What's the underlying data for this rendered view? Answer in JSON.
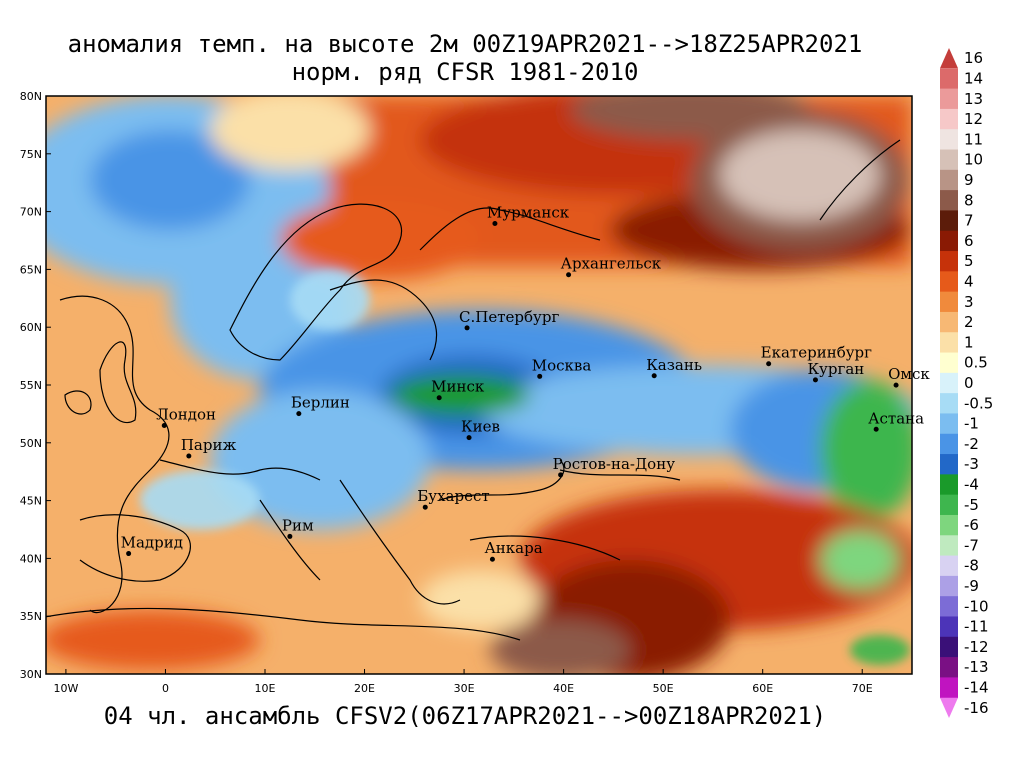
{
  "title": {
    "line1": "аномалия темп. на высоте 2м 00Z19APR2021-->18Z25APR2021",
    "line2": "норм. ряд CFSR 1981-2010"
  },
  "footer": "04 чл. ансамбль CFSV2(06Z17APR2021-->00Z18APR2021)",
  "map": {
    "lon_range": [
      -12,
      75
    ],
    "lat_range": [
      30,
      80
    ],
    "lat_ticks": [
      "30N",
      "35N",
      "40N",
      "45N",
      "50N",
      "55N",
      "60N",
      "65N",
      "70N",
      "75N",
      "80N"
    ],
    "lon_ticks": [
      "10W",
      "0",
      "10E",
      "20E",
      "30E",
      "40E",
      "50E",
      "60E",
      "70E"
    ]
  },
  "cities": [
    {
      "name": "Мурманск",
      "lon": 33.1,
      "lat": 68.97
    },
    {
      "name": "Архангельск",
      "lon": 40.5,
      "lat": 64.54
    },
    {
      "name": "С.Петербург",
      "lon": 30.3,
      "lat": 59.94
    },
    {
      "name": "Москва",
      "lon": 37.6,
      "lat": 55.75
    },
    {
      "name": "Казань",
      "lon": 49.1,
      "lat": 55.8
    },
    {
      "name": "Екатеринбург",
      "lon": 60.6,
      "lat": 56.84
    },
    {
      "name": "Курган",
      "lon": 65.3,
      "lat": 55.44
    },
    {
      "name": "Омск",
      "lon": 73.4,
      "lat": 54.99
    },
    {
      "name": "Астана",
      "lon": 71.4,
      "lat": 51.17
    },
    {
      "name": "Минск",
      "lon": 27.5,
      "lat": 53.9
    },
    {
      "name": "Киев",
      "lon": 30.5,
      "lat": 50.45
    },
    {
      "name": "Берлин",
      "lon": 13.4,
      "lat": 52.52
    },
    {
      "name": "Лондон",
      "lon": -0.12,
      "lat": 51.5
    },
    {
      "name": "Париж",
      "lon": 2.35,
      "lat": 48.86
    },
    {
      "name": "Ростов-на-Дону",
      "lon": 39.7,
      "lat": 47.23
    },
    {
      "name": "Бухарест",
      "lon": 26.1,
      "lat": 44.43
    },
    {
      "name": "Рим",
      "lon": 12.5,
      "lat": 41.9
    },
    {
      "name": "Мадрид",
      "lon": -3.7,
      "lat": 40.42
    },
    {
      "name": "Анкара",
      "lon": 32.85,
      "lat": 39.93
    }
  ],
  "colorbar": {
    "labels": [
      "16",
      "14",
      "13",
      "12",
      "11",
      "10",
      "9",
      "8",
      "7",
      "6",
      "5",
      "4",
      "3",
      "2",
      "1",
      "0.5",
      "0",
      "-0.5",
      "-1",
      "-2",
      "-3",
      "-4",
      "-5",
      "-6",
      "-7",
      "-8",
      "-9",
      "-10",
      "-11",
      "-12",
      "-13",
      "-14",
      "-16"
    ],
    "colors": [
      "#c43d3a",
      "#dc6a6a",
      "#eb9a9a",
      "#f6c8c8",
      "#efe4e1",
      "#d6c1b7",
      "#b89486",
      "#8c5a4a",
      "#5c1c0a",
      "#8a1a04",
      "#c6320a",
      "#e65a1a",
      "#f08a3c",
      "#f7b874",
      "#fbe0a8",
      "#ffffd0",
      "#d8f2fa",
      "#a7dcf5",
      "#7bbdf0",
      "#4a94e6",
      "#2268c8",
      "#1a9a2a",
      "#3eb64e",
      "#7ed67e",
      "#bfeabf",
      "#d8d2f2",
      "#aca0e6",
      "#7c6cd6",
      "#4c34b8",
      "#3a1078",
      "#7a1084",
      "#c014c0",
      "#ee7aee"
    ]
  }
}
